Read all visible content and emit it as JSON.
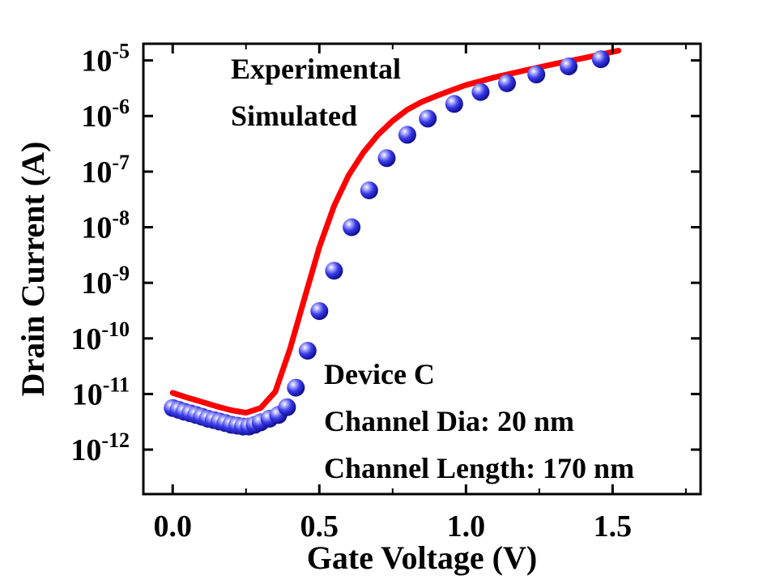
{
  "chart_data": {
    "type": "scatter",
    "xlabel": "Gate Voltage (V)",
    "ylabel": "Drain Current (A)",
    "xlim": [
      -0.1,
      1.8
    ],
    "ylim_log10": [
      -12.8,
      -4.7
    ],
    "y_scale": "log",
    "x_ticks": [
      {
        "value": 0.0,
        "label": "0.0"
      },
      {
        "value": 0.5,
        "label": "0.5"
      },
      {
        "value": 1.0,
        "label": "1.0"
      },
      {
        "value": 1.5,
        "label": "1.5"
      }
    ],
    "y_ticks": [
      {
        "exp": -5,
        "base": "10",
        "sup": "-5"
      },
      {
        "exp": -6,
        "base": "10",
        "sup": "-6"
      },
      {
        "exp": -7,
        "base": "10",
        "sup": "-7"
      },
      {
        "exp": -8,
        "base": "10",
        "sup": "-8"
      },
      {
        "exp": -9,
        "base": "10",
        "sup": "-9"
      },
      {
        "exp": -10,
        "base": "10",
        "sup": "-10"
      },
      {
        "exp": -11,
        "base": "10",
        "sup": "-11"
      },
      {
        "exp": -12,
        "base": "10",
        "sup": "-12"
      }
    ],
    "grid": false,
    "legend": [
      "Experimental",
      "Simulated"
    ],
    "annotations": [
      "Device C",
      "Channel Dia: 20 nm",
      "Channel Length: 170 nm"
    ],
    "series": [
      {
        "name": "Experimental",
        "style": "markers",
        "color": "#2a2ad8",
        "points": [
          [
            0.0,
            5.6e-12
          ],
          [
            0.02,
            5.2e-12
          ],
          [
            0.04,
            4.8e-12
          ],
          [
            0.06,
            4.5e-12
          ],
          [
            0.08,
            4.2e-12
          ],
          [
            0.1,
            3.9e-12
          ],
          [
            0.12,
            3.6e-12
          ],
          [
            0.14,
            3.4e-12
          ],
          [
            0.16,
            3.2e-12
          ],
          [
            0.18,
            3e-12
          ],
          [
            0.2,
            2.8e-12
          ],
          [
            0.22,
            2.7e-12
          ],
          [
            0.24,
            2.6e-12
          ],
          [
            0.26,
            2.6e-12
          ],
          [
            0.28,
            2.8e-12
          ],
          [
            0.3,
            3.1e-12
          ],
          [
            0.33,
            3.6e-12
          ],
          [
            0.36,
            4.2e-12
          ],
          [
            0.39,
            5.8e-12
          ],
          [
            0.42,
            1.3e-11
          ],
          [
            0.46,
            6e-11
          ],
          [
            0.5,
            3.1e-10
          ],
          [
            0.55,
            1.65e-09
          ],
          [
            0.61,
            1e-08
          ],
          [
            0.67,
            4.6e-08
          ],
          [
            0.73,
            1.75e-07
          ],
          [
            0.8,
            4.6e-07
          ],
          [
            0.87,
            9e-07
          ],
          [
            0.96,
            1.65e-06
          ],
          [
            1.05,
            2.7e-06
          ],
          [
            1.14,
            3.9e-06
          ],
          [
            1.24,
            5.6e-06
          ],
          [
            1.35,
            7.8e-06
          ],
          [
            1.46,
            1.05e-05
          ]
        ]
      },
      {
        "name": "Simulated",
        "style": "line",
        "color": "#ff0000",
        "points": [
          [
            0.0,
            1.05e-11
          ],
          [
            0.05,
            8.6e-12
          ],
          [
            0.1,
            7.2e-12
          ],
          [
            0.15,
            6e-12
          ],
          [
            0.2,
            5.1e-12
          ],
          [
            0.25,
            4.6e-12
          ],
          [
            0.3,
            5.6e-12
          ],
          [
            0.35,
            1.1e-11
          ],
          [
            0.4,
            6.5e-11
          ],
          [
            0.45,
            5.4e-10
          ],
          [
            0.5,
            4.4e-09
          ],
          [
            0.55,
            2.4e-08
          ],
          [
            0.6,
            8.6e-08
          ],
          [
            0.65,
            2.2e-07
          ],
          [
            0.7,
            4.6e-07
          ],
          [
            0.75,
            8.2e-07
          ],
          [
            0.8,
            1.3e-06
          ],
          [
            0.85,
            1.8e-06
          ],
          [
            0.9,
            2.3e-06
          ],
          [
            0.95,
            2.9e-06
          ],
          [
            1.0,
            3.6e-06
          ],
          [
            1.1,
            5e-06
          ],
          [
            1.2,
            6.6e-06
          ],
          [
            1.3,
            8.6e-06
          ],
          [
            1.4,
            1.1e-05
          ],
          [
            1.52,
            1.5e-05
          ]
        ]
      }
    ]
  }
}
